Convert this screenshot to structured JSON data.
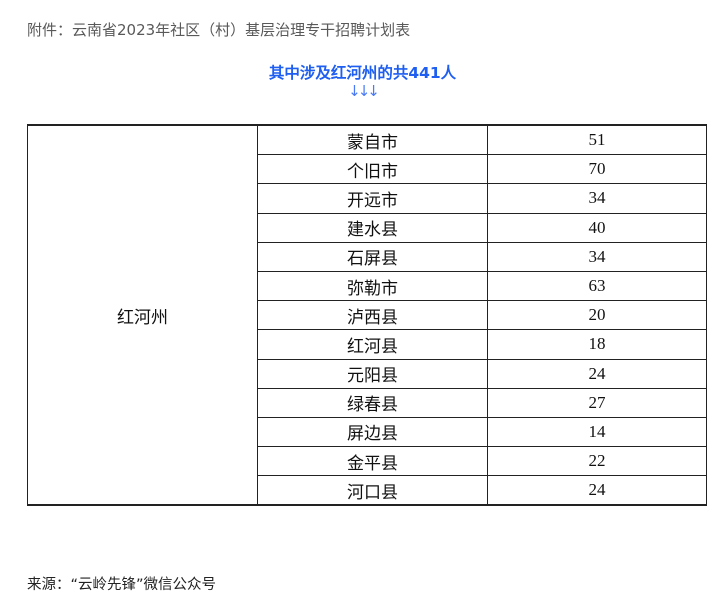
{
  "caption": "附件：云南省2023年社区（村）基层治理专干招聘计划表",
  "headline": "其中涉及红河州的共441人",
  "arrows": "↓↓↓",
  "table": {
    "region": "红河州",
    "rows": [
      {
        "county": "蒙自市",
        "count": "51"
      },
      {
        "county": "个旧市",
        "count": "70"
      },
      {
        "county": "开远市",
        "count": "34"
      },
      {
        "county": "建水县",
        "count": "40"
      },
      {
        "county": "石屏县",
        "count": "34"
      },
      {
        "county": "弥勒市",
        "count": "63"
      },
      {
        "county": "泸西县",
        "count": "20"
      },
      {
        "county": "红河县",
        "count": "18"
      },
      {
        "county": "元阳县",
        "count": "24"
      },
      {
        "county": "绿春县",
        "count": "27"
      },
      {
        "county": "屏边县",
        "count": "14"
      },
      {
        "county": "金平县",
        "count": "22"
      },
      {
        "county": "河口县",
        "count": "24"
      }
    ]
  },
  "source": "来源：“云岭先锋”微信公众号",
  "colors": {
    "headline": "#1e5ef0"
  }
}
